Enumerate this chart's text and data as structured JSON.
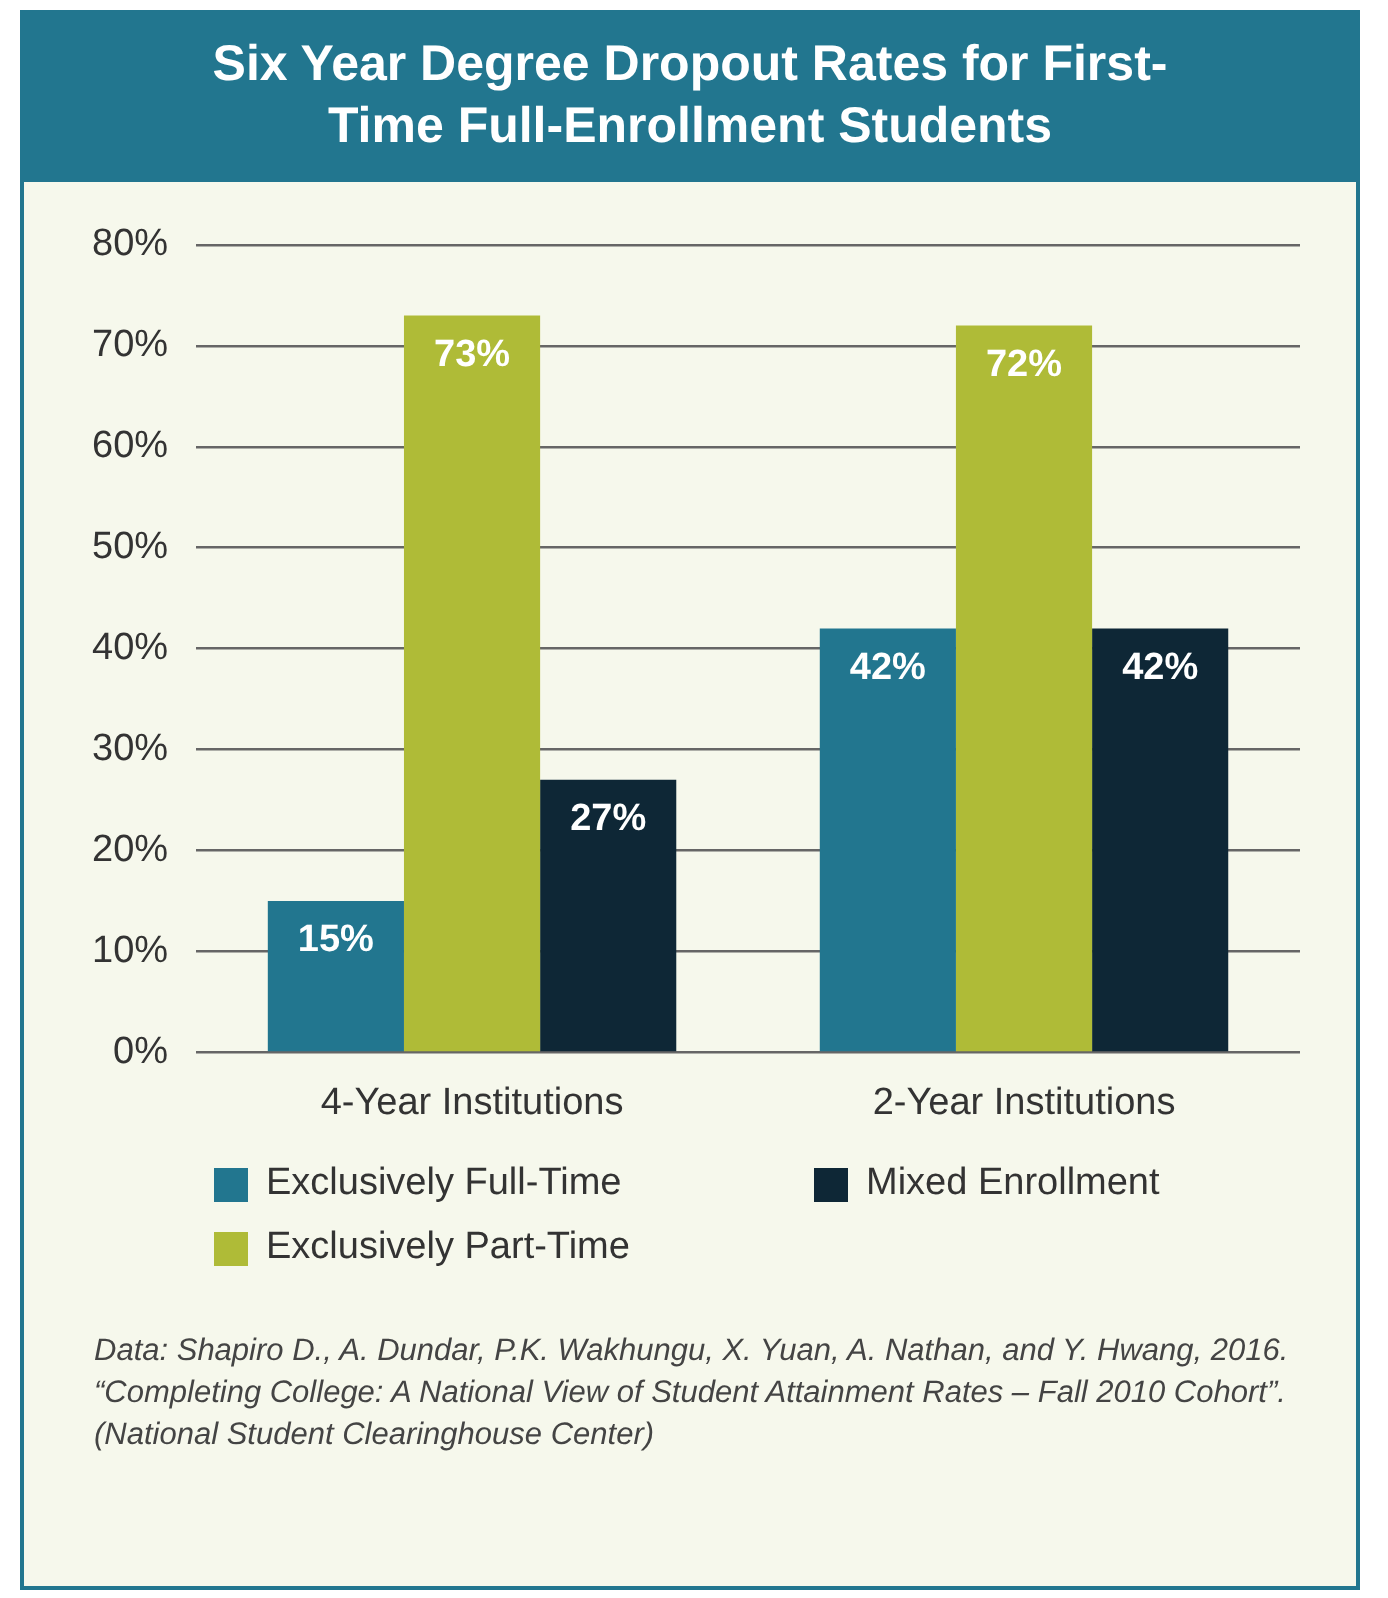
{
  "chart_data": {
    "type": "bar",
    "title": "Six Year Degree Dropout Rates for First-Time Full-Enrollment Students",
    "categories": [
      "4-Year Institutions",
      "2-Year Institutions"
    ],
    "series": [
      {
        "name": "Exclusively Full-Time",
        "color": "#22768f",
        "values": [
          15,
          42
        ]
      },
      {
        "name": "Exclusively Part-Time",
        "color": "#afbb37",
        "values": [
          73,
          72
        ]
      },
      {
        "name": "Mixed Enrollment",
        "color": "#0e2736",
        "values": [
          27,
          42
        ]
      }
    ],
    "ylim": [
      0,
      80
    ],
    "yticks": [
      {
        "value": 0,
        "label": "0%"
      },
      {
        "value": 10,
        "label": "10%"
      },
      {
        "value": 20,
        "label": "20%"
      },
      {
        "value": 30,
        "label": "30%"
      },
      {
        "value": 40,
        "label": "40%"
      },
      {
        "value": 50,
        "label": "50%"
      },
      {
        "value": 60,
        "label": "60%"
      },
      {
        "value": 70,
        "label": "70%"
      },
      {
        "value": 80,
        "label": "80%"
      }
    ],
    "value_labels": [
      [
        "15%",
        "42%"
      ],
      [
        "73%",
        "72%"
      ],
      [
        "27%",
        "42%"
      ]
    ],
    "grid": "y",
    "legend": "bottom",
    "annotations": [
      "Data: Shapiro D., A. Dundar, P.K. Wakhungu, X. Yuan, A. Nathan, and Y. Hwang, 2016. “Completing College: A National View of Student Attainment Rates – Fall 2010 Cohort”. (National Student Clearinghouse Center)"
    ]
  }
}
